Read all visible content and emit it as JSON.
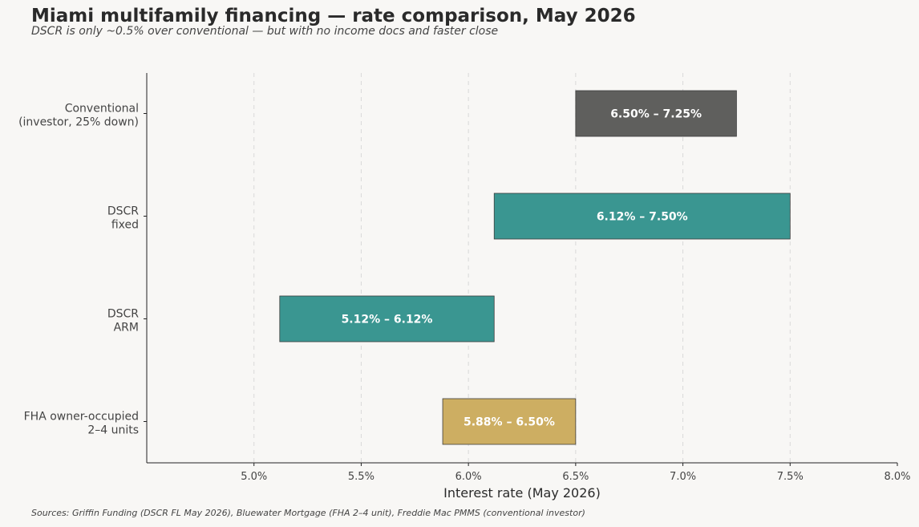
{
  "title": "Miami multifamily financing — rate comparison, May 2026",
  "subtitle": "DSCR is only ~0.5% over conventional — but with no income docs and faster close",
  "source": "Sources: Griffin Funding (DSCR FL May 2026), Bluewater Mortgage (FHA 2–4 unit), Freddie Mac PMMS (conventional investor)",
  "chart_data": {
    "type": "bar",
    "orientation": "horizontal-range",
    "title": "Miami multifamily financing — rate comparison, May 2026",
    "subtitle": "DSCR is only ~0.5% over conventional — but with no income docs and faster close",
    "xlabel": "Interest rate (May 2026)",
    "ylabel": "",
    "xlim": [
      4.5,
      8.0
    ],
    "x_ticks": [
      "5.0%",
      "5.5%",
      "6.0%",
      "6.5%",
      "7.0%",
      "7.5%",
      "8.0%"
    ],
    "x_tick_values": [
      5.0,
      5.5,
      6.0,
      6.5,
      7.0,
      7.5,
      8.0
    ],
    "grid": "vertical dashed",
    "categories": [
      [
        "Conventional",
        "(investor, 25% down)"
      ],
      [
        "DSCR",
        "fixed"
      ],
      [
        "DSCR",
        "ARM"
      ],
      [
        "FHA owner-occupied",
        "2–4 units"
      ]
    ],
    "ranges": [
      {
        "low": 6.5,
        "high": 7.25,
        "label": "6.50% – 7.25%",
        "color": "#5f5f5d"
      },
      {
        "low": 6.12,
        "high": 7.5,
        "label": "6.12% – 7.50%",
        "color": "#3a9691"
      },
      {
        "low": 5.12,
        "high": 6.12,
        "label": "5.12% – 6.12%",
        "color": "#3a9691"
      },
      {
        "low": 5.88,
        "high": 6.5,
        "label": "5.88% – 6.50%",
        "color": "#cdae62"
      }
    ]
  },
  "colors": {
    "background": "#f8f7f5",
    "conventional": "#5f5f5d",
    "dscr": "#3a9691",
    "fha": "#cdae62"
  }
}
